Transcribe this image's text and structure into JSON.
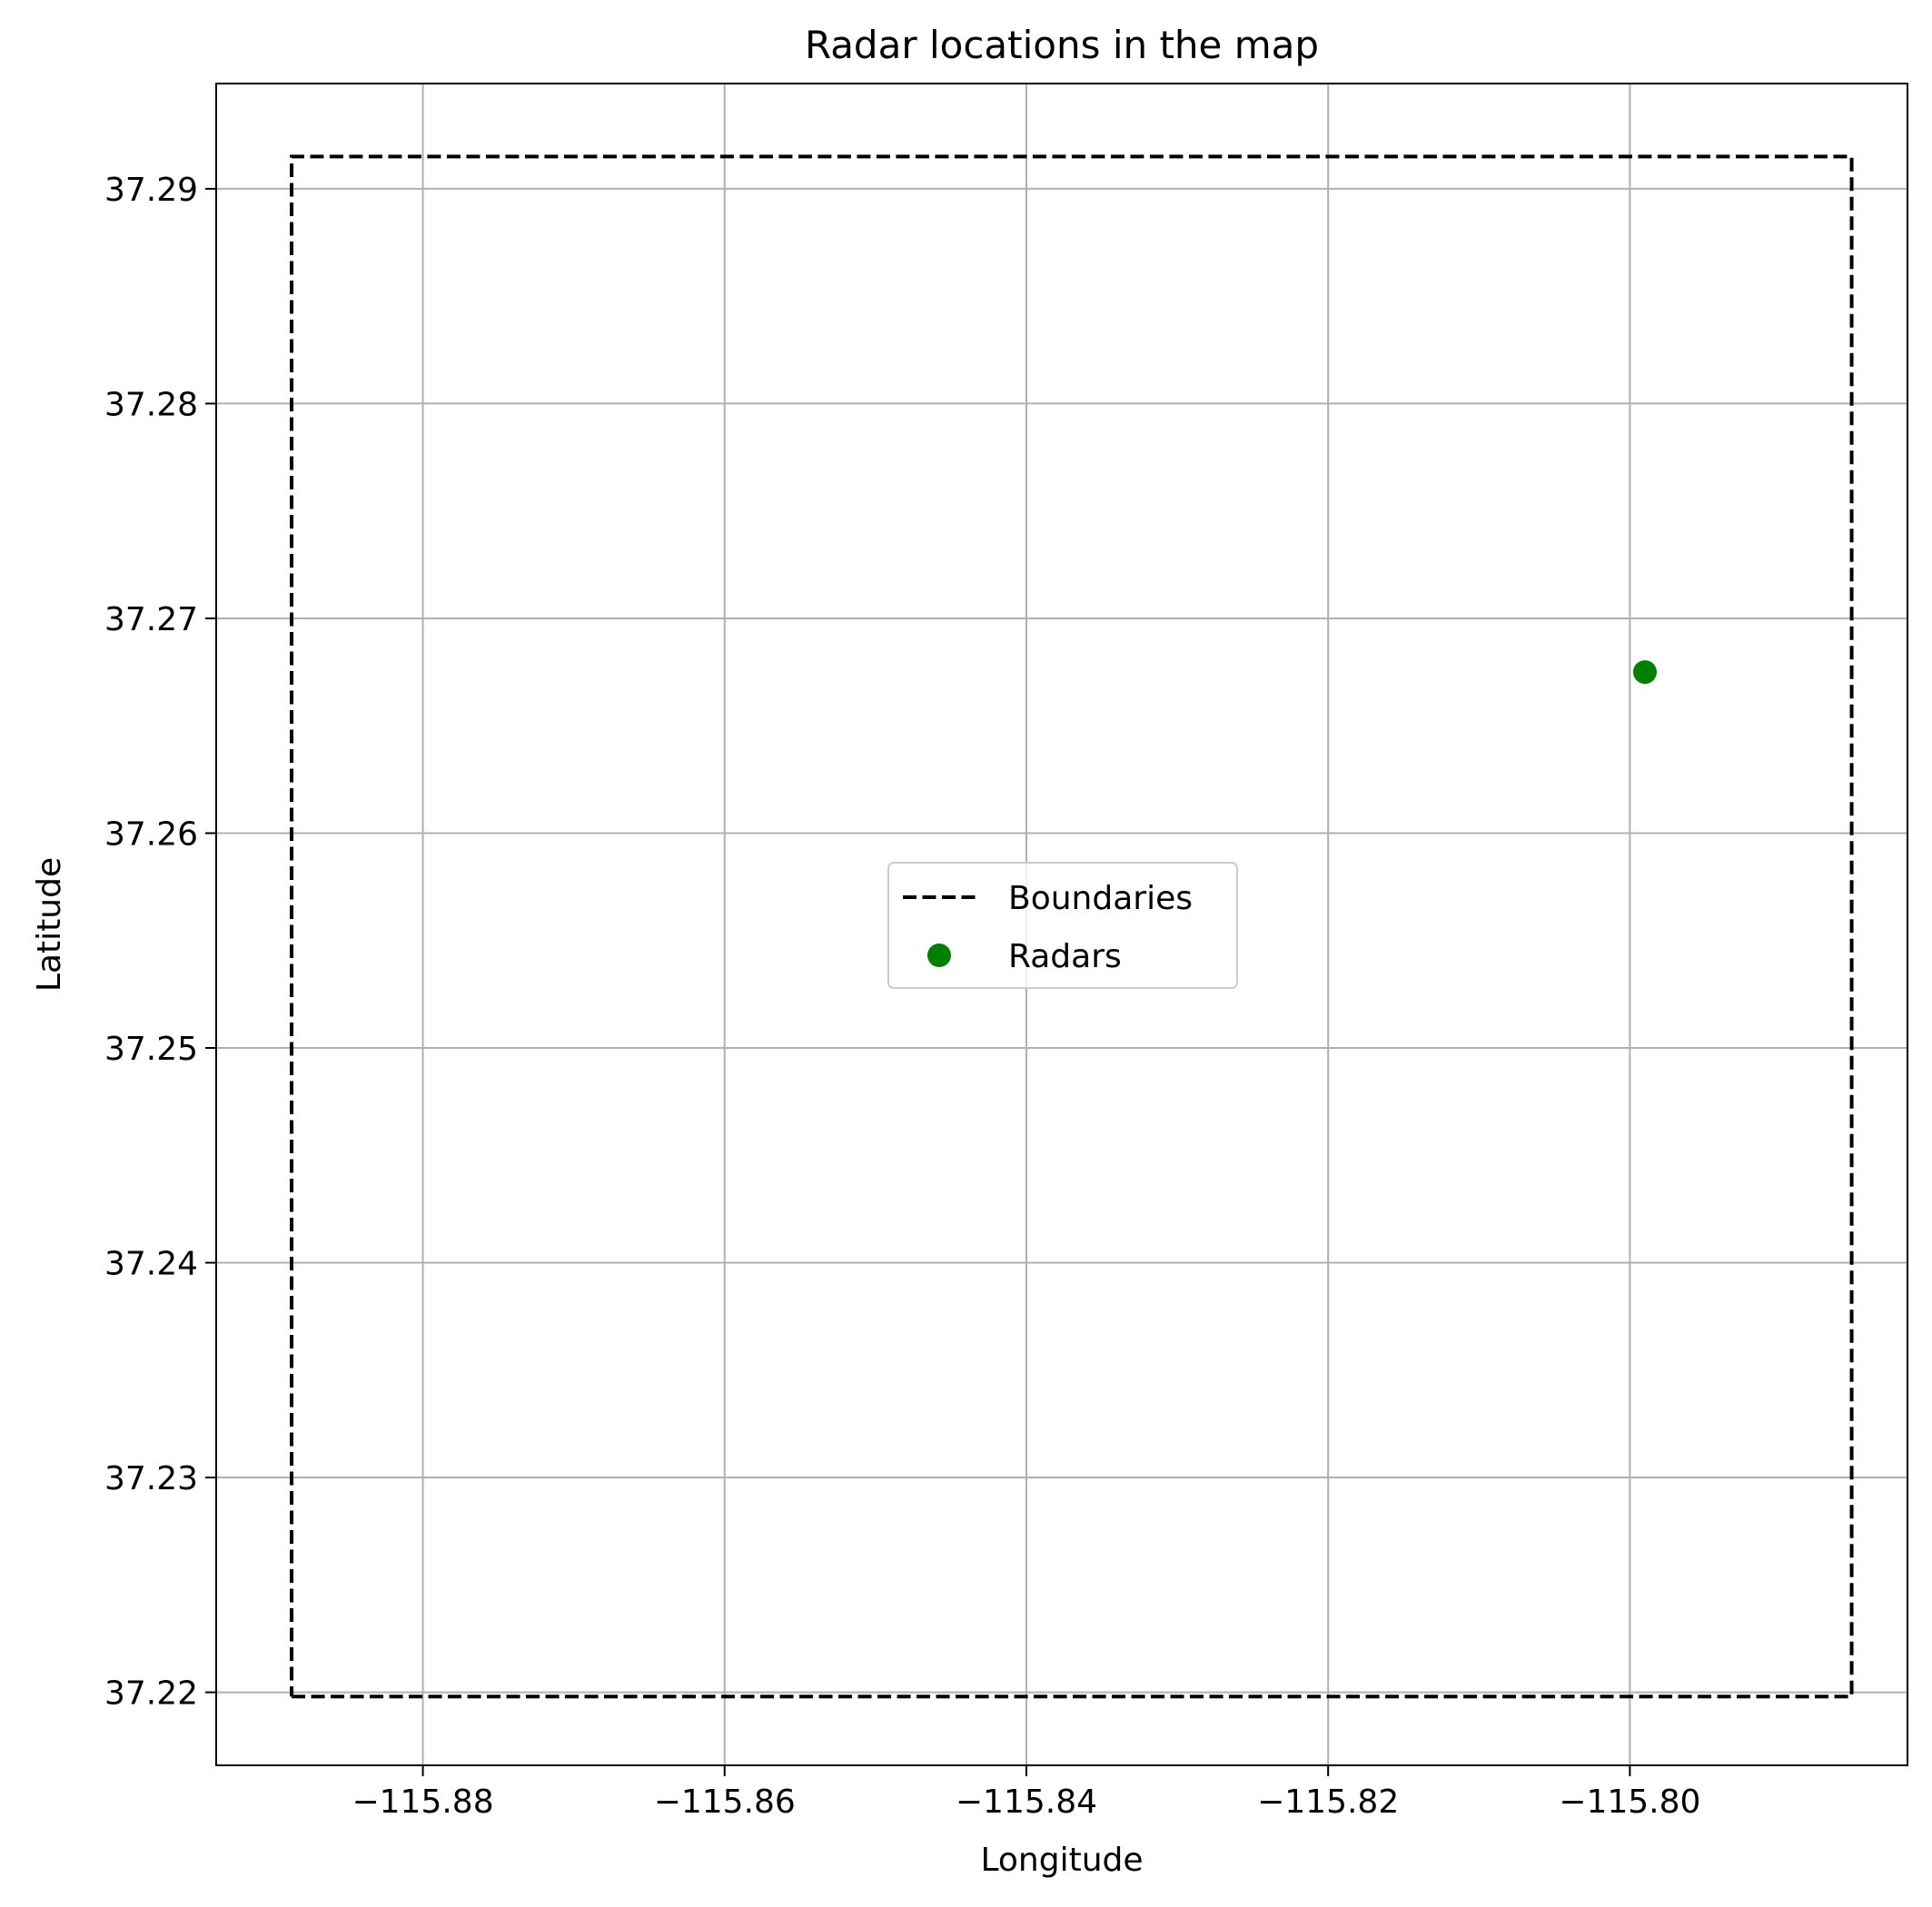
{
  "chart_data": {
    "type": "scatter",
    "title": "Radar locations in the map",
    "xlabel": "Longitude",
    "ylabel": "Latitude",
    "xlim": [
      -115.8937,
      -115.7816
    ],
    "ylim": [
      37.2166,
      37.2949
    ],
    "xticks": [
      -115.88,
      -115.86,
      -115.84,
      -115.82,
      -115.8
    ],
    "xtick_labels": [
      "−115.88",
      "−115.86",
      "−115.84",
      "−115.82",
      "−115.80"
    ],
    "yticks": [
      37.22,
      37.23,
      37.24,
      37.25,
      37.26,
      37.27,
      37.28,
      37.29
    ],
    "ytick_labels": [
      "37.22",
      "37.23",
      "37.24",
      "37.25",
      "37.26",
      "37.27",
      "37.28",
      "37.29"
    ],
    "grid": true,
    "legend_position": "center",
    "series": [
      {
        "name": "Boundaries",
        "kind": "line",
        "style": "dashed",
        "color": "#000000",
        "x": [
          -115.8887,
          -115.7853,
          -115.7853,
          -115.8887,
          -115.8887
        ],
        "y": [
          37.2198,
          37.2198,
          37.2915,
          37.2915,
          37.2198
        ]
      },
      {
        "name": "Radars",
        "kind": "scatter",
        "color": "#008000",
        "x": [
          -115.799
        ],
        "y": [
          37.2675
        ]
      }
    ]
  }
}
